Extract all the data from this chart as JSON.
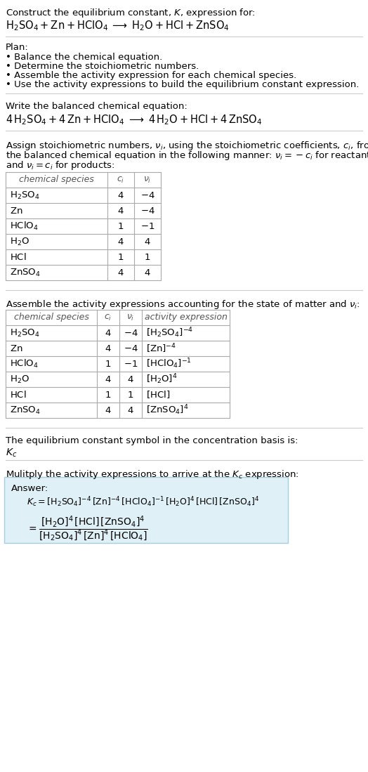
{
  "bg_color": "#ffffff",
  "text_color": "#000000",
  "gray_color": "#555555",
  "table_border_color": "#aaaaaa",
  "answer_box_color": "#dff0f7",
  "answer_box_border": "#aaccdd",
  "title_line1": "Construct the equilibrium constant, $K$, expression for:",
  "title_line2": "$\\mathrm{H_2SO_4 + Zn + HClO_4 \\;\\longrightarrow\\; H_2O + HCl + ZnSO_4}$",
  "plan_header": "Plan:",
  "plan_items": [
    "• Balance the chemical equation.",
    "• Determine the stoichiometric numbers.",
    "• Assemble the activity expression for each chemical species.",
    "• Use the activity expressions to build the equilibrium constant expression."
  ],
  "balanced_header": "Write the balanced chemical equation:",
  "balanced_eq": "$\\mathrm{4\\,H_2SO_4 + 4\\,Zn + HClO_4 \\;\\longrightarrow\\; 4\\,H_2O + HCl + 4\\,ZnSO_4}$",
  "stoich_lines": [
    "Assign stoichiometric numbers, $\\nu_i$, using the stoichiometric coefficients, $c_i$, from",
    "the balanced chemical equation in the following manner: $\\nu_i = -c_i$ for reactants",
    "and $\\nu_i = c_i$ for products:"
  ],
  "table1_headers": [
    "chemical species",
    "$c_i$",
    "$\\nu_i$"
  ],
  "table1_rows": [
    [
      "$\\mathrm{H_2SO_4}$",
      "4",
      "$-4$"
    ],
    [
      "$\\mathrm{Zn}$",
      "4",
      "$-4$"
    ],
    [
      "$\\mathrm{HClO_4}$",
      "1",
      "$-1$"
    ],
    [
      "$\\mathrm{H_2O}$",
      "4",
      "4"
    ],
    [
      "$\\mathrm{HCl}$",
      "1",
      "1"
    ],
    [
      "$\\mathrm{ZnSO_4}$",
      "4",
      "4"
    ]
  ],
  "activity_header": "Assemble the activity expressions accounting for the state of matter and $\\nu_i$:",
  "table2_headers": [
    "chemical species",
    "$c_i$",
    "$\\nu_i$",
    "activity expression"
  ],
  "table2_rows": [
    [
      "$\\mathrm{H_2SO_4}$",
      "4",
      "$-4$",
      "$[\\mathrm{H_2SO_4}]^{-4}$"
    ],
    [
      "$\\mathrm{Zn}$",
      "4",
      "$-4$",
      "$[\\mathrm{Zn}]^{-4}$"
    ],
    [
      "$\\mathrm{HClO_4}$",
      "1",
      "$-1$",
      "$[\\mathrm{HClO_4}]^{-1}$"
    ],
    [
      "$\\mathrm{H_2O}$",
      "4",
      "4",
      "$[\\mathrm{H_2O}]^{4}$"
    ],
    [
      "$\\mathrm{HCl}$",
      "1",
      "1",
      "$[\\mathrm{HCl}]$"
    ],
    [
      "$\\mathrm{ZnSO_4}$",
      "4",
      "4",
      "$[\\mathrm{ZnSO_4}]^{4}$"
    ]
  ],
  "kc_header": "The equilibrium constant symbol in the concentration basis is:",
  "kc_symbol": "$K_c$",
  "multiply_header": "Mulitply the activity expressions to arrive at the $K_c$ expression:",
  "answer_label": "Answer:",
  "answer_line1": "$K_c = [\\mathrm{H_2SO_4}]^{-4}\\,[\\mathrm{Zn}]^{-4}\\,[\\mathrm{HClO_4}]^{-1}\\,[\\mathrm{H_2O}]^{4}\\,[\\mathrm{HCl}]\\,[\\mathrm{ZnSO_4}]^{4}$",
  "answer_eq_lhs": "$= \\dfrac{[\\mathrm{H_2O}]^{4}\\,[\\mathrm{HCl}]\\,[\\mathrm{ZnSO_4}]^{4}}{[\\mathrm{H_2SO_4}]^{4}\\,[\\mathrm{Zn}]^{4}\\,[\\mathrm{HClO_4}]}$"
}
